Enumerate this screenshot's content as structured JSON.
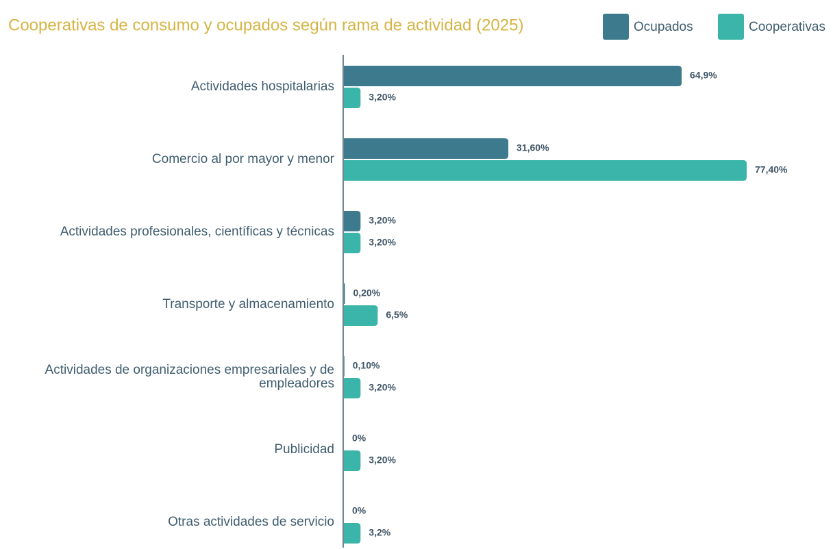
{
  "chart_data": {
    "type": "bar",
    "orientation": "horizontal",
    "title": "Cooperativas de consumo y ocupados según rama de actividad (2025)",
    "categories": [
      "Actividades hospitalarias",
      "Comercio al por mayor y menor",
      "Actividades profesionales, científicas y técnicas",
      "Transporte y almacenamiento",
      "Actividades de organizaciones empresariales y de empleadores",
      "Publicidad",
      "Otras actividades de servicio"
    ],
    "series": [
      {
        "name": "Ocupados",
        "color": "#3d7a8e",
        "values": [
          64.9,
          31.6,
          3.2,
          0.2,
          0.1,
          0,
          0
        ],
        "value_labels": [
          "64,9%",
          "31,60%",
          "3,20%",
          "0,20%",
          "0,10%",
          "0%",
          "0%"
        ]
      },
      {
        "name": "Cooperativas",
        "color": "#3bb5a9",
        "values": [
          3.2,
          77.4,
          3.2,
          6.5,
          3.2,
          3.2,
          3.2
        ],
        "value_labels": [
          "3,20%",
          "77,40%",
          "3,20%",
          "6,5%",
          "3,20%",
          "3,20%",
          "3,2%"
        ]
      }
    ]
  }
}
